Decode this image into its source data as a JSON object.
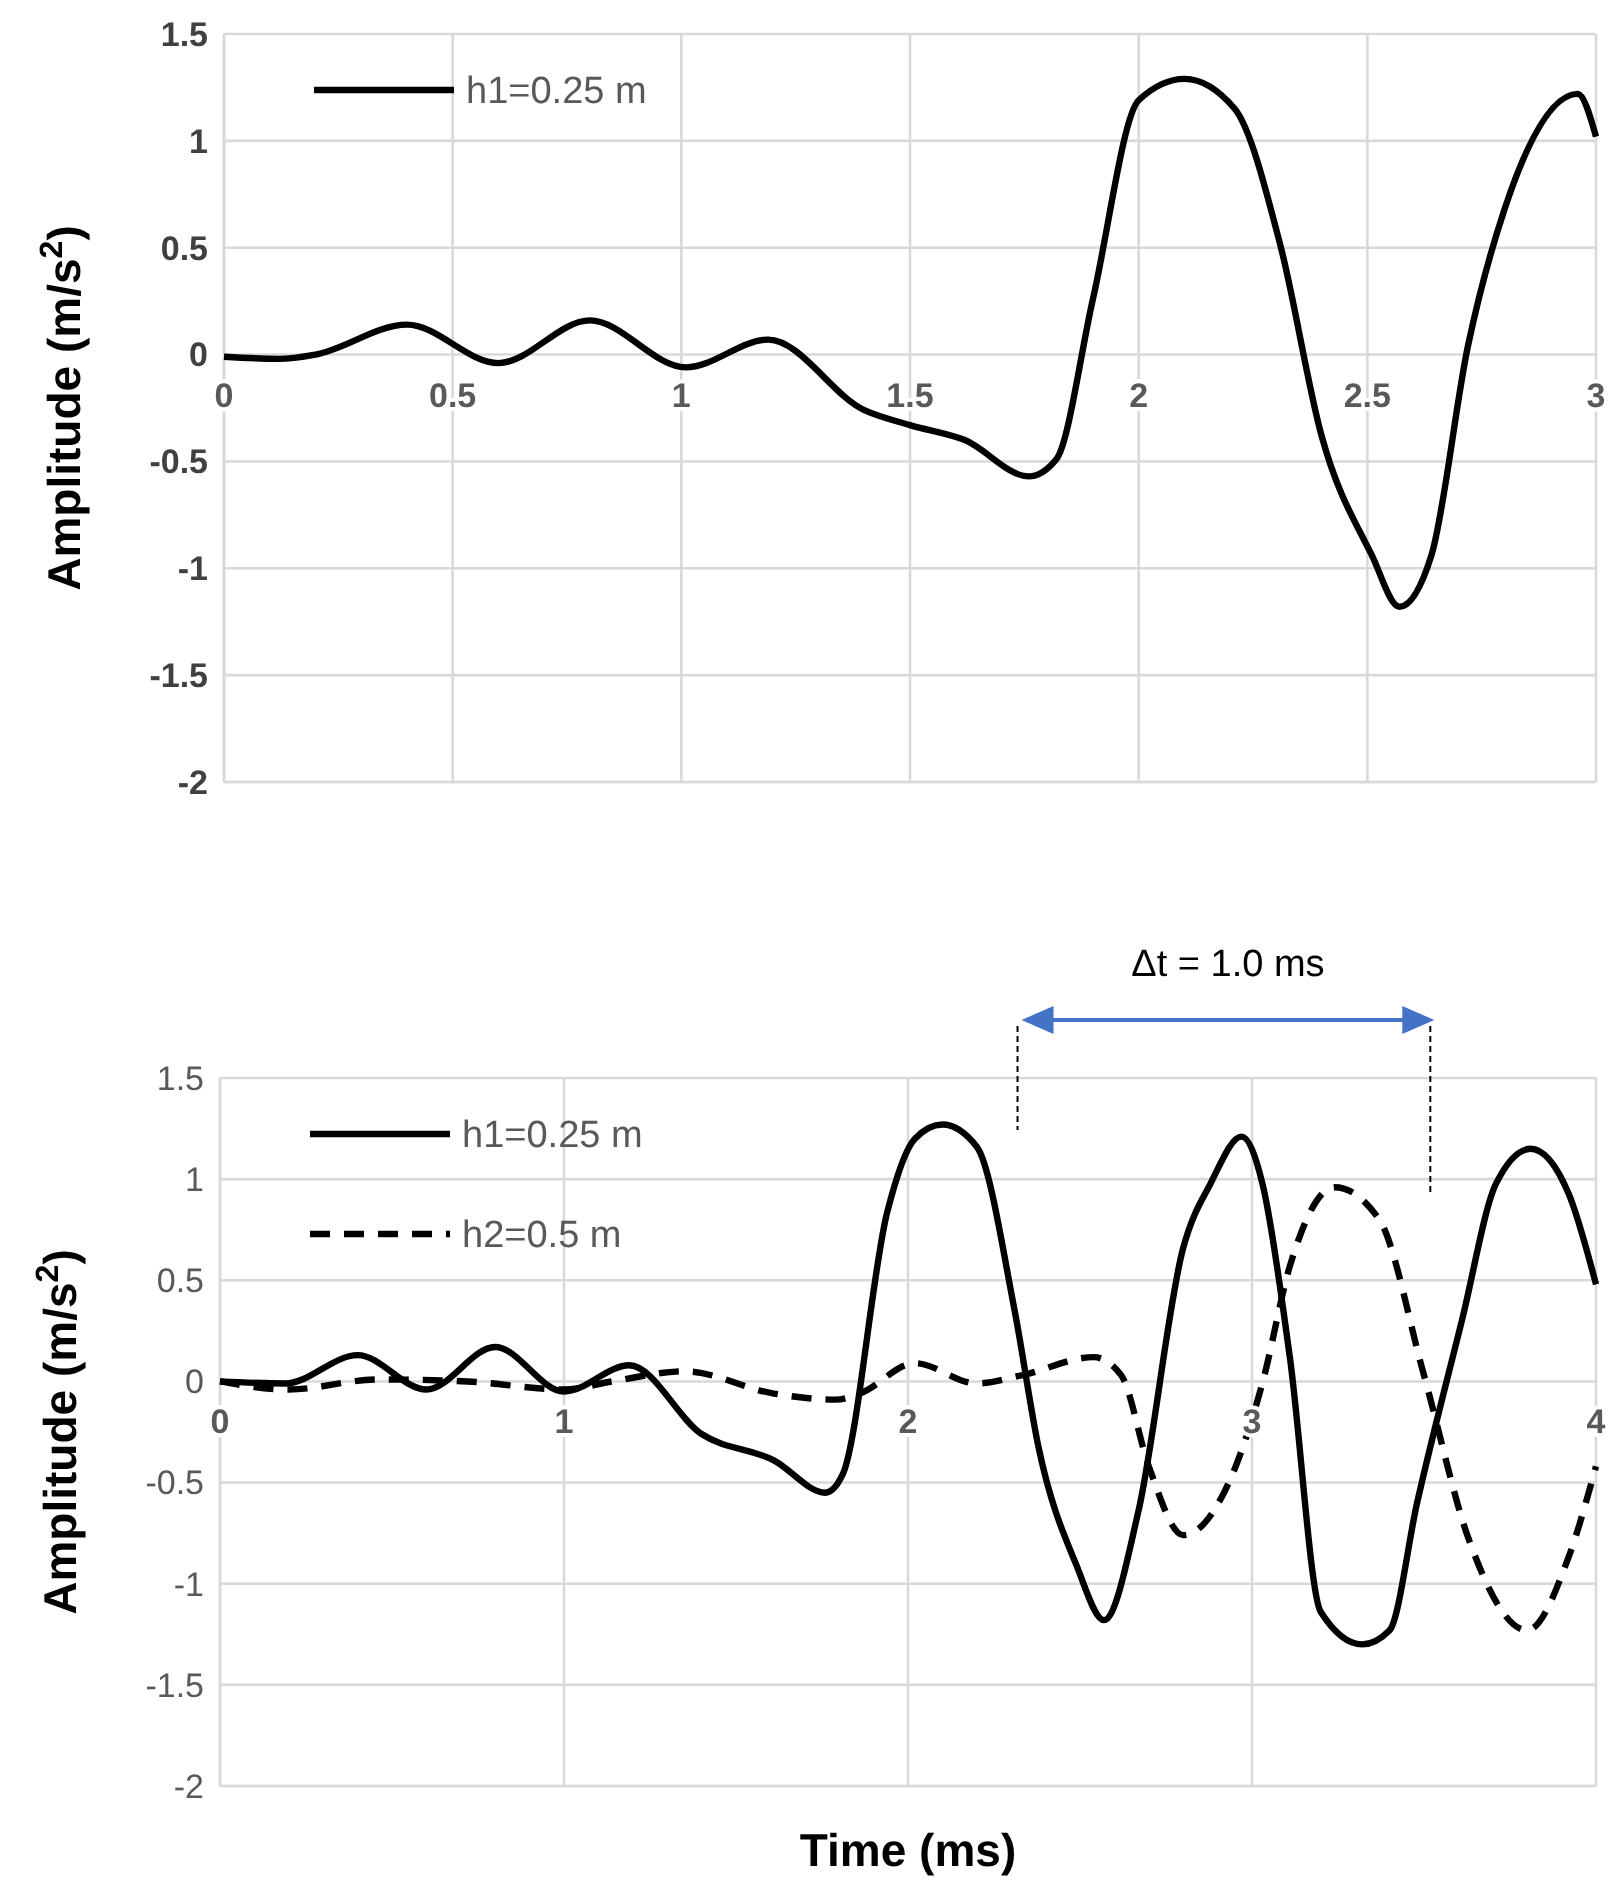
{
  "chart_data": [
    {
      "type": "line",
      "ylabel": "Amplitude (m/s$^{2}$)",
      "xlim": [
        0,
        3
      ],
      "xticks": [
        0,
        0.5,
        1,
        1.5,
        2,
        2.5,
        3
      ],
      "ylim": [
        -2,
        1.5
      ],
      "yticks": [
        -2,
        -1.5,
        -1,
        -0.5,
        0,
        0.5,
        1,
        1.5
      ],
      "grid": true,
      "legend": "top left",
      "marker": "none",
      "series": [
        {
          "name": "h1=0.25 m",
          "color": "#000000",
          "line_style": "solid",
          "x": [
            0,
            0.12,
            0.2,
            0.4,
            0.6,
            0.8,
            1.01,
            1.19,
            1.4,
            1.5,
            1.62,
            1.76,
            1.82,
            1.9,
            2.0,
            2.1,
            2.21,
            2.31,
            2.4,
            2.51,
            2.57,
            2.64,
            2.72,
            2.8,
            2.96,
            3.0
          ],
          "values": [
            -0.01,
            -0.02,
            0,
            0.14,
            -0.04,
            0.16,
            -0.06,
            0.07,
            -0.26,
            -0.33,
            -0.4,
            -0.57,
            -0.49,
            0.26,
            1.19,
            1.29,
            1.15,
            0.51,
            -0.38,
            -0.94,
            -1.18,
            -0.94,
            0.04,
            0.68,
            1.22,
            1.02
          ]
        }
      ]
    },
    {
      "type": "line",
      "ylabel": "Amplitude (m/s$^{2}$)",
      "xlabel": "Time (ms)",
      "xlim": [
        0,
        4
      ],
      "xticks": [
        0,
        1,
        2,
        3,
        4
      ],
      "ylim": [
        -2,
        1.5
      ],
      "yticks": [
        -2,
        -1.5,
        -1,
        -0.5,
        0,
        0.5,
        1,
        1.5
      ],
      "grid": true,
      "legend": "top left",
      "marker": "none",
      "annotations": [
        "Δt = 1.0 ms"
      ],
      "series": [
        {
          "name": "h1=0.25 m",
          "color": "#000000",
          "line_style": "solid",
          "x": [
            0,
            0.19,
            0.4,
            0.6,
            0.8,
            1.0,
            1.19,
            1.4,
            1.61,
            1.76,
            1.81,
            1.94,
            2.02,
            2.1,
            2.2,
            2.31,
            2.38,
            2.49,
            2.57,
            2.67,
            2.8,
            2.88,
            2.97,
            3.03,
            3.11,
            3.2,
            3.32,
            3.4,
            3.48,
            3.61,
            3.71,
            3.81,
            3.92,
            4.0
          ],
          "values": [
            0,
            -0.01,
            0.13,
            -0.04,
            0.17,
            -0.05,
            0.08,
            -0.26,
            -0.39,
            -0.55,
            -0.46,
            0.84,
            1.2,
            1.27,
            1.16,
            0.35,
            -0.33,
            -0.91,
            -1.18,
            -0.64,
            0.66,
            0.98,
            1.21,
            0.98,
            0.12,
            -1.14,
            -1.3,
            -1.23,
            -0.6,
            0.3,
            0.98,
            1.15,
            0.93,
            0.48
          ]
        },
        {
          "name": "h2=0.5 m",
          "color": "#000000",
          "line_style": "dashed",
          "x": [
            0,
            0.2,
            0.46,
            0.72,
            1.0,
            1.14,
            1.35,
            1.61,
            1.79,
            1.86,
            2.02,
            2.2,
            2.33,
            2.54,
            2.62,
            2.7,
            2.8,
            2.93,
            3.03,
            3.11,
            3.24,
            3.37,
            3.5,
            3.63,
            3.8,
            3.92,
            4.0
          ],
          "values": [
            0,
            -0.04,
            0.01,
            0,
            -0.04,
            0,
            0.05,
            -0.06,
            -0.09,
            -0.06,
            0.09,
            -0.01,
            0.03,
            0.12,
            0.03,
            -0.42,
            -0.76,
            -0.51,
            -0.01,
            0.57,
            0.96,
            0.8,
            0.03,
            -0.78,
            -1.23,
            -0.87,
            -0.42
          ]
        }
      ]
    }
  ]
}
